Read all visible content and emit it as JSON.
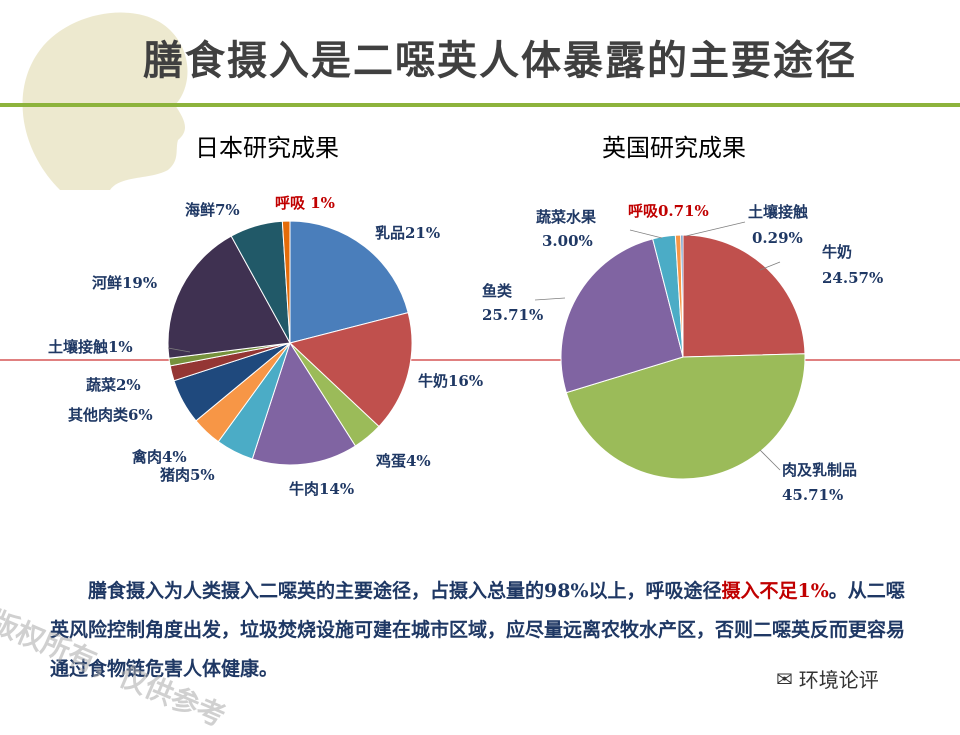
{
  "title": "膳食摄入是二噁英人体暴露的主要途径",
  "colors": {
    "title_bar": "#8db33c",
    "title_text": "#404040",
    "label": "#1f3864",
    "highlight": "#c00000",
    "red_line": "#c00000"
  },
  "chart_data": [
    {
      "type": "pie",
      "title": "日本研究成果",
      "slices": [
        {
          "label": "乳品21%",
          "value": 21,
          "color": "#4a7ebb"
        },
        {
          "label": "牛奶16%",
          "value": 16,
          "color": "#c0504d"
        },
        {
          "label": "鸡蛋4%",
          "value": 4,
          "color": "#9bbb59"
        },
        {
          "label": "牛肉14%",
          "value": 14,
          "color": "#8064a2"
        },
        {
          "label": "猪肉5%",
          "value": 5,
          "color": "#4bacc6"
        },
        {
          "label": "禽肉4%",
          "value": 4,
          "color": "#f79646"
        },
        {
          "label": "其他肉类6%",
          "value": 6,
          "color": "#1f497d"
        },
        {
          "label": "蔬菜2%",
          "value": 2,
          "color": "#943634"
        },
        {
          "label": "土壤接触1%",
          "value": 1,
          "color": "#76923c"
        },
        {
          "label": "河鲜19%",
          "value": 19,
          "color": "#3f3151"
        },
        {
          "label": "海鲜7%",
          "value": 7,
          "color": "#215968"
        },
        {
          "label": "呼吸 1%",
          "value": 1,
          "color": "#e46c0a",
          "highlight": true
        }
      ]
    },
    {
      "type": "pie",
      "title": "英国研究成果",
      "slices": [
        {
          "label": "牛奶",
          "sub": "24.57%",
          "value": 24.57,
          "color": "#c0504d"
        },
        {
          "label": "肉及乳制品",
          "sub": "45.71%",
          "value": 45.71,
          "color": "#9bbb59"
        },
        {
          "label": "鱼类",
          "sub": "25.71%",
          "value": 25.71,
          "color": "#8064a2"
        },
        {
          "label": "蔬菜水果",
          "sub": "3.00%",
          "value": 3.0,
          "color": "#4bacc6"
        },
        {
          "label": "呼吸0.71%",
          "sub": "",
          "value": 0.71,
          "color": "#f79646",
          "highlight": true
        },
        {
          "label": "土壤接触",
          "sub": "0.29%",
          "value": 0.29,
          "color": "#4f81bd"
        }
      ]
    }
  ],
  "body": {
    "p1": "膳食摄入为人类摄入二噁英的主要途径，占摄入总量的98%以上，呼吸途径",
    "p2": "摄入不足1%",
    "p3": "。从二噁英风险控制角度出发，垃圾焚烧设施可建在城市区域，应尽量远离农牧水产区，否则二噁英反而更容易通过食物链危害人体健康。"
  },
  "watermark": "版权所有，仅供参考",
  "brand": "环境论评"
}
